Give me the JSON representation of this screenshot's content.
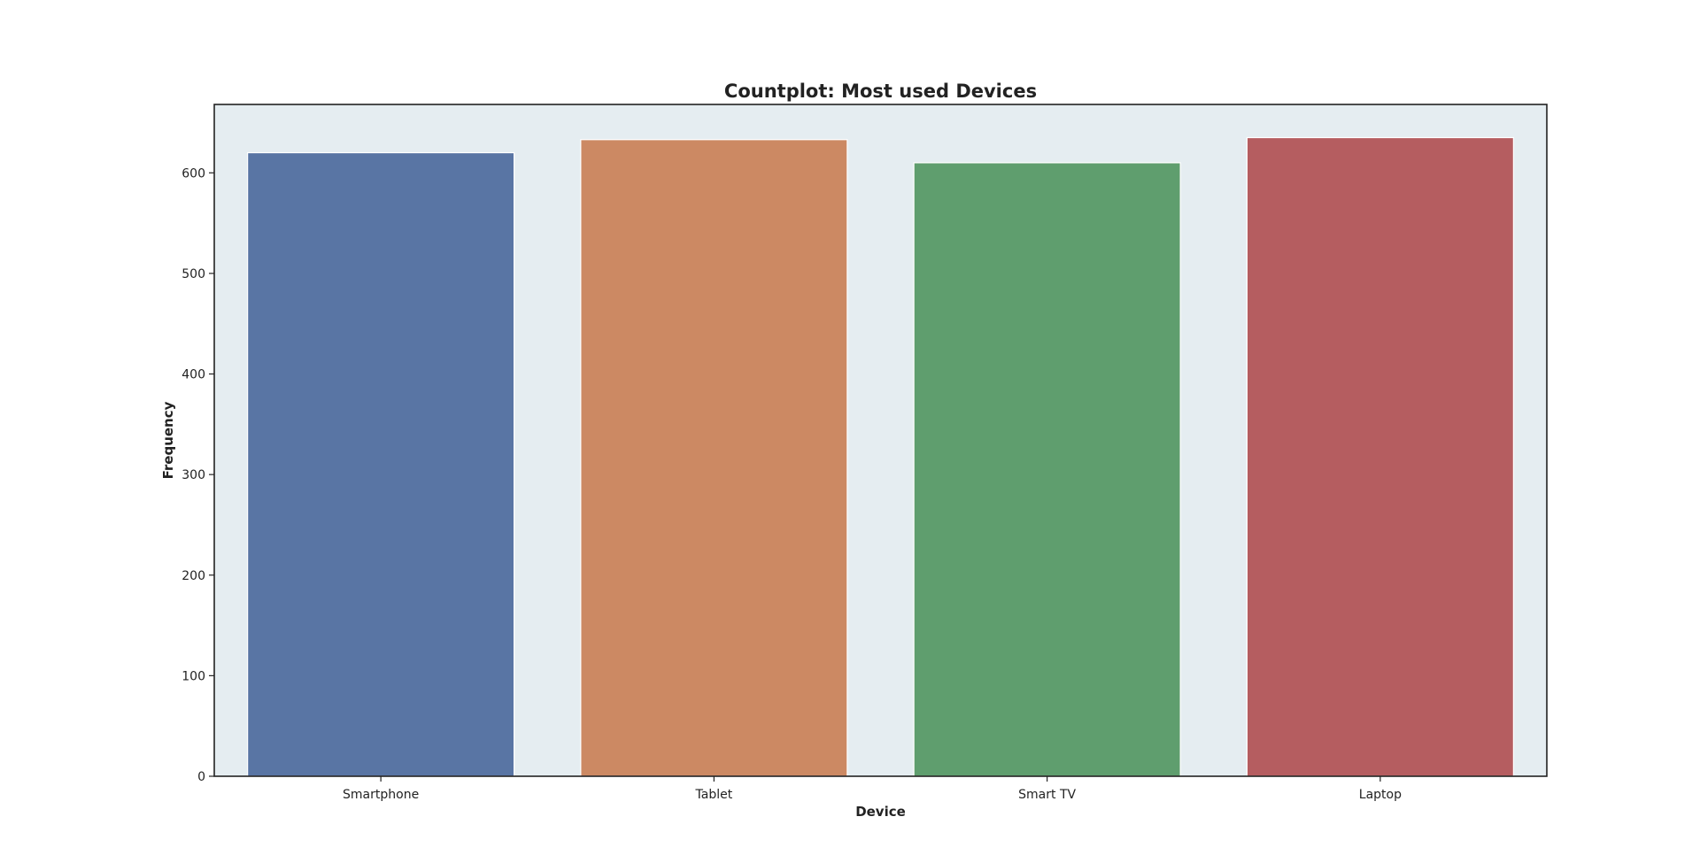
{
  "chart_data": {
    "type": "bar",
    "title": "Countplot: Most used Devices",
    "xlabel": "Device",
    "ylabel": "Frequency",
    "categories": [
      "Smartphone",
      "Tablet",
      "Smart TV",
      "Laptop"
    ],
    "values": [
      620,
      633,
      610,
      635
    ],
    "ylim": [
      0,
      668
    ],
    "yticks": [
      0,
      100,
      200,
      300,
      400,
      500,
      600
    ],
    "grid": false,
    "legend": "none",
    "colors": [
      "#5975a4",
      "#cc8963",
      "#5f9e6e",
      "#b55d60"
    ],
    "background": "#e5edf1"
  }
}
